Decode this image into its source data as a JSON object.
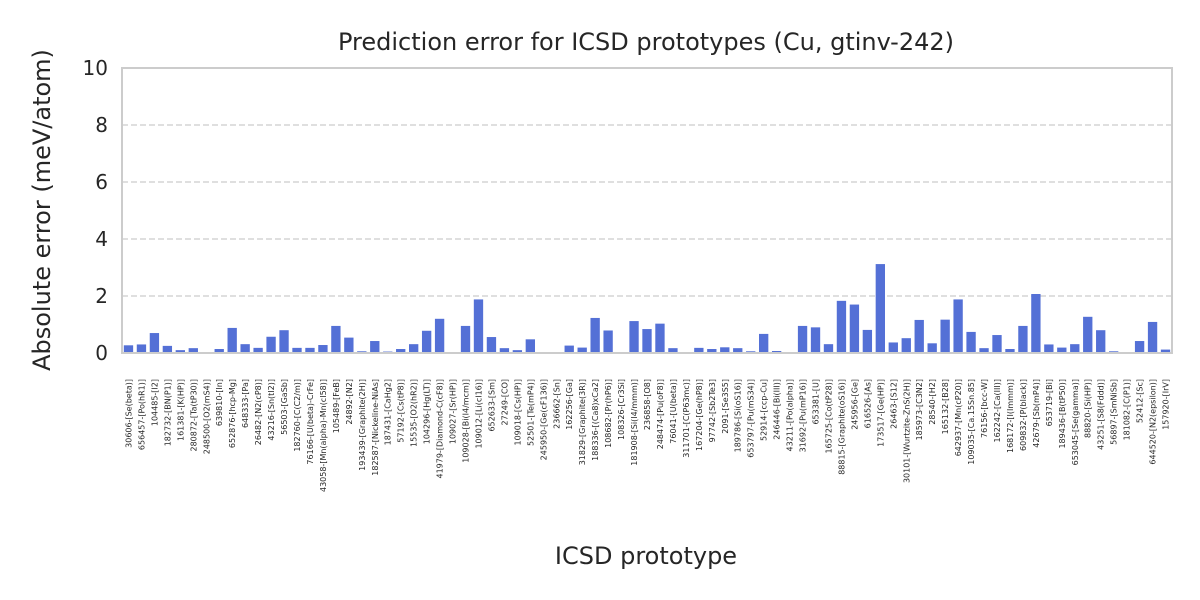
{
  "chart_data": {
    "type": "bar",
    "title": "Prediction error for ICSD prototypes (Cu, gtinv-242)",
    "xlabel": "ICSD prototype",
    "ylabel": "Absolute error (meV/atom)",
    "ylim": [
      0,
      10
    ],
    "yticks": [
      0,
      2,
      4,
      6,
      8,
      10
    ],
    "grid": true,
    "bar_color": "#5470d6",
    "categories": [
      "30606-[Se(beta)]",
      "656457-[Po(hR1)]",
      "104485-[I2]",
      "182732-[BN(P1)]",
      "161381-[K(HP)]",
      "280872-[Ta(tP30)]",
      "248500-[O2(mS4)]",
      "639810-[In]",
      "652876-[hcp-Mg]",
      "648333-[Pa]",
      "26482-[N2(cP8)]",
      "43216-[Sn(tI2)]",
      "56503-[GaSb]",
      "182760-[C(C2/m)]",
      "76166-[U(beta)-CrFe]",
      "43058-[Mn(alpha)-Mn(cI58)]",
      "105489-[FeB]",
      "24892-[N2]",
      "193439-[Graphite(2H)]",
      "182587-[Nickeline-NiAs]",
      "187431-[CaHg2]",
      "57192-[Cs(tP8)]",
      "15535-[O2(hR2)]",
      "104296-[Hg(LT)]",
      "41979-[Diamond-C(cF8)]",
      "109027-[Sr(HP)]",
      "109028-[Bi(I4/mcm)]",
      "109012-[Li(cI16)]",
      "652633-[Sm]",
      "27249-[CO]",
      "109018-[Cs(HP)]",
      "52501-[Te(mP4)]",
      "245950-[Ge(cF136)]",
      "236662-[Sn]",
      "162256-[Ga]",
      "31829-[Graphite(3R)]",
      "188336-[(Ca8)xCa2]",
      "108682-[Pr(hP6)]",
      "108326-[Cr3Si]",
      "181908-[Si(I4/mmm)]",
      "236858-[O8]",
      "248474-[Pu(oF8)]",
      "76041-[U(beta)]",
      "311701-[C(P63mc)]",
      "167204-[Ge(hP8)]",
      "97742-[Sb2Te3]",
      "2091-[Se3S5]",
      "189786-[Si(oS16)]",
      "653797-[Pu(mS34)]",
      "52914-[ccp-Cu]",
      "246446-[Bi(III)]",
      "43211-[Po(alpha)]",
      "31692-[Pu(mP16)]",
      "653381-[U]",
      "165725-[Co(tP28)]",
      "88815-[Graphite(oS16)]",
      "245956-[Ge]",
      "616526-[As]",
      "173517-[Ge(HP)]",
      "26463-[S12]",
      "30101-[Wurtzite-ZnS(2H)]",
      "185973-[C3N2]",
      "28540-[H2]",
      "165132-[B28]",
      "642937-[Mn(cP20)]",
      "109035-[Ca.15Sn.85]",
      "76156-[bcc-W]",
      "162242-[Ca(III)]",
      "168172-[I(Immm)]",
      "609832-[P(black)]",
      "42679-[Sb(mP4)]",
      "653719-[Bi]",
      "189436-[B(tP50)]",
      "653045-[Se(gamma)]",
      "88820-[Si(HP)]",
      "43251-[S8(Fddd)]",
      "56897-[SmNiSb]",
      "181082-[C(P1)]",
      "52412-[Sc]",
      "644520-[N2(epsilon)]",
      "157920-[IrV]"
    ],
    "values": [
      0.27,
      0.3,
      0.7,
      0.25,
      0.1,
      0.17,
      0.02,
      0.14,
      0.88,
      0.31,
      0.18,
      0.57,
      0.8,
      0.18,
      0.18,
      0.28,
      0.95,
      0.54,
      0.06,
      0.42,
      0.05,
      0.14,
      0.31,
      0.78,
      1.2,
      0.02,
      0.95,
      1.88,
      0.56,
      0.17,
      0.1,
      0.48,
      0.02,
      0.02,
      0.26,
      0.19,
      1.23,
      0.79,
      0.02,
      1.12,
      0.84,
      1.03,
      0.17,
      0.02,
      0.18,
      0.14,
      0.2,
      0.17,
      0.06,
      0.67,
      0.07,
      0.02,
      0.95,
      0.9,
      0.31,
      1.83,
      1.7,
      0.81,
      3.12,
      0.37,
      0.52,
      1.16,
      0.34,
      1.17,
      1.88,
      0.74,
      0.17,
      0.63,
      0.14,
      0.95,
      2.07,
      0.3,
      0.19,
      0.31,
      1.27,
      0.8,
      0.06,
      0.02,
      0.42,
      1.09,
      0.12
    ]
  }
}
